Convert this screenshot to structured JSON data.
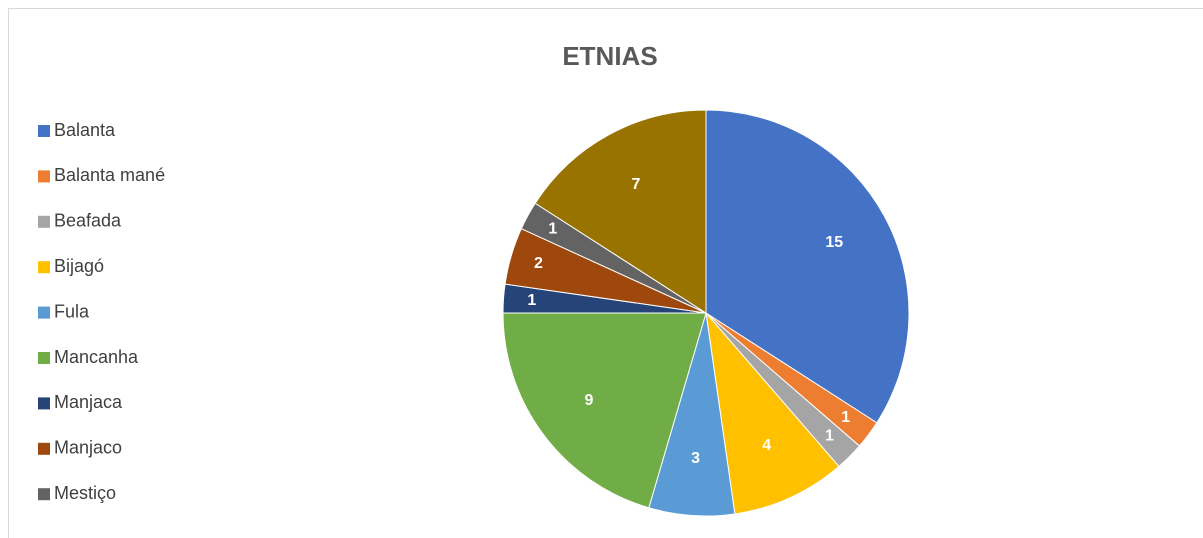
{
  "chart_data": {
    "type": "pie",
    "title": "ETNIAS",
    "categories": [
      "Balanta",
      "Balanta mané",
      "Beafada",
      "Bijagó",
      "Fula",
      "Mancanha",
      "Manjaca",
      "Manjaco",
      "Mestiço",
      null
    ],
    "values": [
      15,
      1,
      1,
      4,
      3,
      9,
      1,
      2,
      1,
      7
    ],
    "colors": [
      "#4472c4",
      "#ed7d31",
      "#a5a5a5",
      "#ffc000",
      "#5b9bd5",
      "#70ad47",
      "#264478",
      "#9e480e",
      "#636363",
      "#997300"
    ],
    "legend": "left"
  }
}
